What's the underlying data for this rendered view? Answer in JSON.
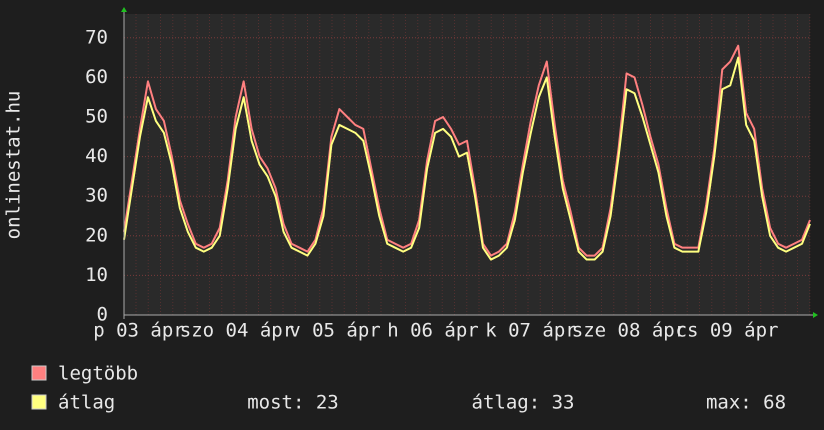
{
  "chart_data": {
    "type": "line",
    "y_label": "onlinestat.hu",
    "x_labels": [
      "p 03 ápr",
      "szo 04 ápr",
      "v 05 ápr",
      "h 06 ápr",
      "k 07 ápr",
      "sze 08 ápr",
      "cs 09 ápr"
    ],
    "ylim": [
      0,
      75
    ],
    "yticks": [
      0,
      10,
      20,
      30,
      40,
      50,
      60,
      70
    ],
    "grid": true,
    "series": [
      {
        "name": "legtöbb",
        "color": "#ff8080",
        "values": [
          21,
          34,
          47,
          59,
          52,
          49,
          40,
          29,
          23,
          18,
          17,
          18,
          22,
          34,
          50,
          59,
          47,
          40,
          37,
          32,
          23,
          18,
          17,
          16,
          19,
          27,
          45,
          52,
          50,
          48,
          47,
          37,
          27,
          19,
          18,
          17,
          18,
          24,
          39,
          49,
          50,
          47,
          43,
          44,
          32,
          18,
          15,
          16,
          18,
          26,
          38,
          49,
          58,
          64,
          48,
          34,
          26,
          17,
          15,
          15,
          17,
          27,
          42,
          61,
          60,
          53,
          45,
          38,
          27,
          18,
          17,
          17,
          17,
          28,
          42,
          62,
          64,
          68,
          51,
          47,
          32,
          22,
          18,
          17,
          18,
          19,
          24
        ]
      },
      {
        "name": "átlag",
        "color": "#ffff80",
        "values": [
          19,
          32,
          45,
          55,
          49,
          46,
          38,
          27,
          21,
          17,
          16,
          17,
          20,
          32,
          47,
          55,
          44,
          38,
          35,
          30,
          21,
          17,
          16,
          15,
          18,
          25,
          43,
          48,
          47,
          46,
          44,
          35,
          25,
          18,
          17,
          16,
          17,
          22,
          37,
          46,
          47,
          45,
          40,
          41,
          30,
          17,
          14,
          15,
          17,
          24,
          36,
          46,
          55,
          60,
          45,
          32,
          24,
          16,
          14,
          14,
          16,
          25,
          40,
          57,
          56,
          50,
          43,
          36,
          25,
          17,
          16,
          16,
          16,
          26,
          40,
          57,
          58,
          65,
          48,
          44,
          30,
          20,
          17,
          16,
          17,
          18,
          23
        ]
      }
    ],
    "stats": [
      "most: 23",
      "átlag: 33",
      "max: 68"
    ]
  }
}
